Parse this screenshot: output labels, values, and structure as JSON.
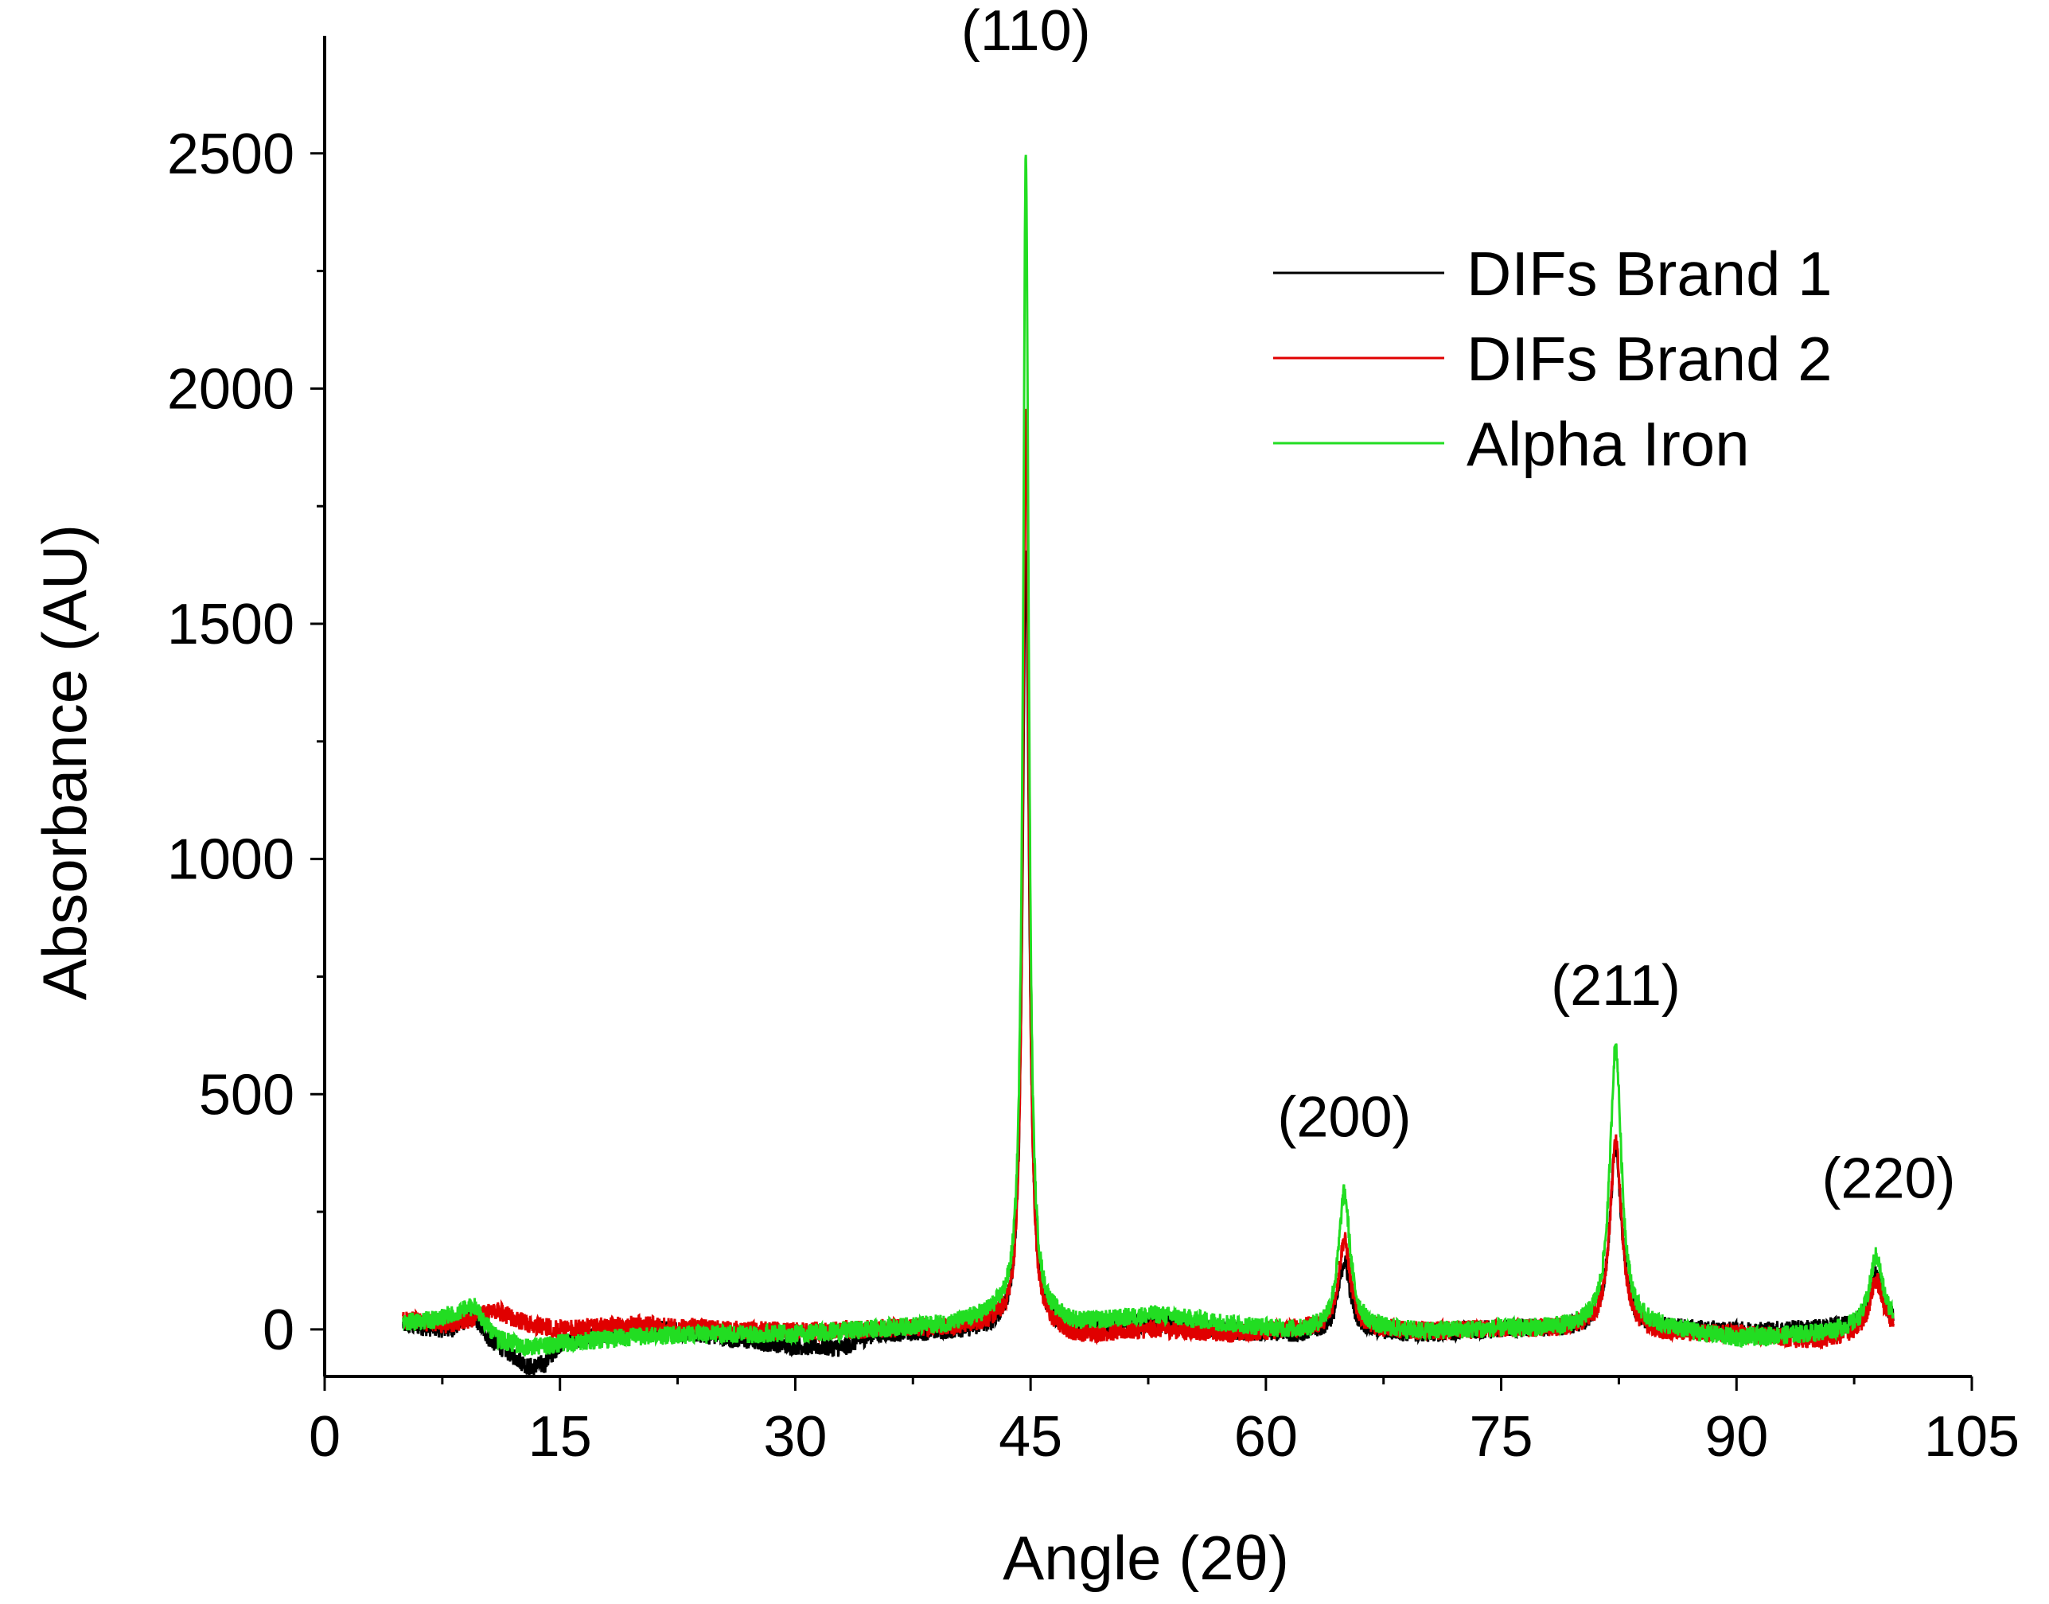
{
  "chart_data": {
    "type": "line",
    "title": "",
    "xlabel": "Angle (2θ)",
    "ylabel": "Absorbance (AU)",
    "xlim": [
      0,
      105
    ],
    "ylim": [
      -100,
      2750
    ],
    "x_ticks": [
      0,
      15,
      30,
      45,
      60,
      75,
      90,
      105
    ],
    "y_ticks": [
      0,
      500,
      1000,
      1500,
      2000,
      2500
    ],
    "x_minor_step": 7.5,
    "y_minor_step": 250,
    "grid": false,
    "legend_position": "top-right",
    "peak_annotations": [
      {
        "label": "(110)",
        "x": 44.7,
        "y": 2720
      },
      {
        "label": "(200)",
        "x": 65.0,
        "y": 410
      },
      {
        "label": "(211)",
        "x": 82.3,
        "y": 690
      },
      {
        "label": "(220)",
        "x": 99.7,
        "y": 280
      }
    ],
    "series": [
      {
        "name": "DIFs Brand 1",
        "color": "#000000",
        "peaks": [
          [
            44.7,
            1650,
            0.25
          ],
          [
            65.0,
            150,
            0.45
          ],
          [
            82.3,
            390,
            0.45
          ],
          [
            98.9,
            110,
            0.5
          ]
        ],
        "points": [
          [
            5,
            10
          ],
          [
            8,
            0
          ],
          [
            9.5,
            30
          ],
          [
            10.5,
            -20
          ],
          [
            12,
            -55
          ],
          [
            13,
            -80
          ],
          [
            14,
            -75
          ],
          [
            15,
            -30
          ],
          [
            18,
            -10
          ],
          [
            22,
            0
          ],
          [
            26,
            -20
          ],
          [
            30,
            -35
          ],
          [
            33,
            -40
          ],
          [
            35,
            -10
          ],
          [
            40,
            -5
          ],
          [
            43,
            0
          ],
          [
            48,
            0
          ],
          [
            53,
            10
          ],
          [
            58,
            -5
          ],
          [
            62,
            -10
          ],
          [
            66,
            -5
          ],
          [
            70,
            -10
          ],
          [
            75,
            0
          ],
          [
            80,
            0
          ],
          [
            85,
            0
          ],
          [
            90,
            -5
          ],
          [
            95,
            0
          ],
          [
            100,
            10
          ]
        ]
      },
      {
        "name": "DIFs Brand 2",
        "color": "#e00000",
        "peaks": [
          [
            44.7,
            1960,
            0.22
          ],
          [
            65.0,
            190,
            0.45
          ],
          [
            82.3,
            400,
            0.45
          ],
          [
            98.9,
            110,
            0.5
          ]
        ],
        "points": [
          [
            5,
            20
          ],
          [
            8,
            10
          ],
          [
            9.5,
            25
          ],
          [
            11,
            40
          ],
          [
            13,
            10
          ],
          [
            15,
            0
          ],
          [
            20,
            10
          ],
          [
            25,
            0
          ],
          [
            30,
            -5
          ],
          [
            35,
            0
          ],
          [
            40,
            5
          ],
          [
            43,
            10
          ],
          [
            48,
            -15
          ],
          [
            53,
            0
          ],
          [
            58,
            -10
          ],
          [
            62,
            0
          ],
          [
            66,
            0
          ],
          [
            70,
            -5
          ],
          [
            75,
            0
          ],
          [
            80,
            0
          ],
          [
            85,
            -10
          ],
          [
            90,
            -10
          ],
          [
            95,
            -25
          ],
          [
            100,
            0
          ]
        ]
      },
      {
        "name": "Alpha Iron",
        "color": "#22dd22",
        "peaks": [
          [
            44.7,
            2470,
            0.22
          ],
          [
            65.0,
            290,
            0.45
          ],
          [
            82.3,
            600,
            0.45
          ],
          [
            98.9,
            150,
            0.5
          ]
        ],
        "points": [
          [
            5,
            15
          ],
          [
            7,
            20
          ],
          [
            9.5,
            50
          ],
          [
            11,
            -20
          ],
          [
            13,
            -40
          ],
          [
            15,
            -30
          ],
          [
            20,
            -15
          ],
          [
            25,
            -10
          ],
          [
            30,
            -10
          ],
          [
            35,
            0
          ],
          [
            40,
            10
          ],
          [
            43,
            30
          ],
          [
            48,
            10
          ],
          [
            53,
            30
          ],
          [
            58,
            10
          ],
          [
            62,
            -5
          ],
          [
            66,
            0
          ],
          [
            70,
            -5
          ],
          [
            75,
            0
          ],
          [
            80,
            0
          ],
          [
            85,
            0
          ],
          [
            90,
            -20
          ],
          [
            95,
            -10
          ],
          [
            100,
            10
          ]
        ]
      }
    ]
  }
}
